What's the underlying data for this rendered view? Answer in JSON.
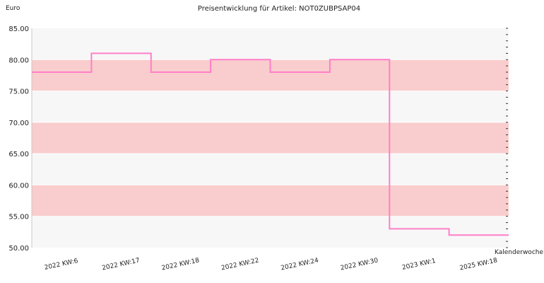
{
  "chart_data": {
    "type": "line",
    "step": true,
    "title": "Preisentwicklung für Artikel: NOT0ZUBPSAP04",
    "ylabel": "Euro",
    "xlabel": "Kalenderwoche",
    "ylim": [
      50,
      85
    ],
    "yticks": [
      "50.00",
      "55.00",
      "60.00",
      "65.00",
      "70.00",
      "75.00",
      "80.00",
      "85.00"
    ],
    "categories": [
      "2022 KW:6",
      "2022 KW:17",
      "2022 KW:18",
      "2022 KW:22",
      "2022 KW:24",
      "2022 KW:30",
      "2023 KW:1",
      "2025 KW:18"
    ],
    "series": [
      {
        "values": [
          78,
          81,
          78,
          80,
          78,
          80,
          53,
          52
        ]
      }
    ],
    "colors": {
      "line": "#ff7fc8",
      "band_light": "#f7f7f7",
      "band_dark": "#f9cdcd",
      "grid": "#ffffff"
    },
    "grid": true
  }
}
